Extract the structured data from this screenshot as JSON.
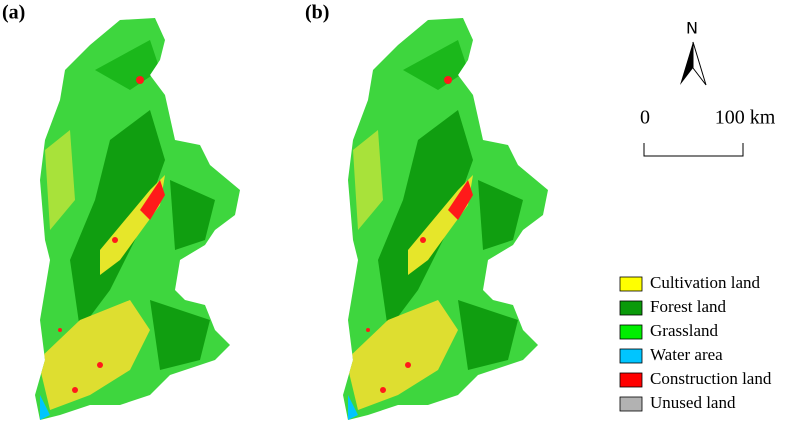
{
  "panels": [
    {
      "label": "(a)"
    },
    {
      "label": "(b)"
    }
  ],
  "north_arrow": {
    "label": "N"
  },
  "scale_bar": {
    "start_label": "0",
    "end_label": "100 km"
  },
  "legend": {
    "items": [
      {
        "name": "Cultivation land",
        "color": "#ffff00"
      },
      {
        "name": "Forest land",
        "color": "#0a9a0a"
      },
      {
        "name": "Grassland",
        "color": "#00ee00"
      },
      {
        "name": "Water area",
        "color": "#00c5ff"
      },
      {
        "name": "Construction land",
        "color": "#ff0000"
      },
      {
        "name": "Unused land",
        "color": "#b2b2b2"
      }
    ]
  }
}
